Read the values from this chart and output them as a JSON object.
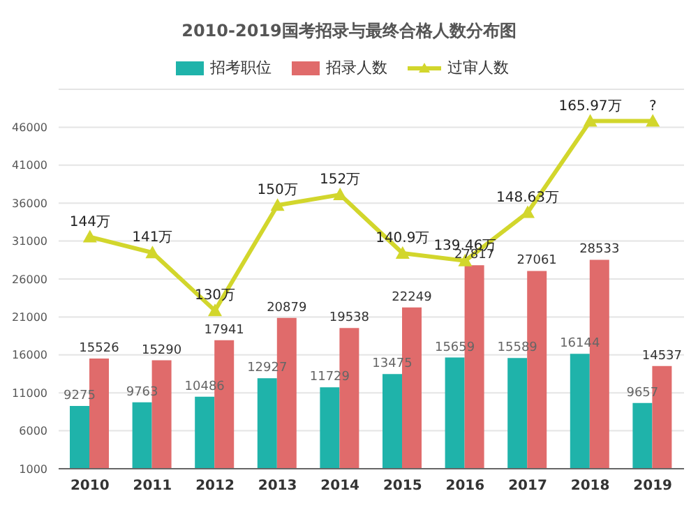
{
  "chart_data": {
    "type": "bar",
    "title": "2010-2019国考招录与最终合格人数分布图",
    "categories": [
      "2010",
      "2011",
      "2012",
      "2013",
      "2014",
      "2015",
      "2016",
      "2017",
      "2018",
      "2019"
    ],
    "series": [
      {
        "name": "招考职位",
        "color": "#1fb3aa",
        "values": [
          9275,
          9763,
          10486,
          12927,
          11729,
          13475,
          15659,
          15589,
          16144,
          9657
        ]
      },
      {
        "name": "招录人数",
        "color": "#e06b6b",
        "values": [
          15526,
          15290,
          17941,
          20879,
          19538,
          22249,
          27817,
          27061,
          28533,
          14537
        ]
      },
      {
        "name": "过审人数",
        "type": "line",
        "axis": "y2",
        "color": "#d2d62c",
        "marker": "triangle",
        "values": [
          144,
          141,
          130,
          150,
          152,
          140.9,
          139.46,
          148.63,
          165.97,
          165.97
        ],
        "value_labels": [
          "144万",
          "141万",
          "130万",
          "150万",
          "152万",
          "140.9万",
          "139.46万",
          "148.63万",
          "165.97万",
          "?"
        ]
      }
    ],
    "ylim": [
      1000,
      51000
    ],
    "yticks": [
      1000,
      6000,
      11000,
      16000,
      21000,
      26000,
      31000,
      36000,
      41000,
      46000,
      {
        "value": 51000,
        "label": null
      }
    ],
    "y2lim": [
      100,
      172
    ],
    "data_labels": true,
    "grid": "y",
    "legend": "top"
  }
}
